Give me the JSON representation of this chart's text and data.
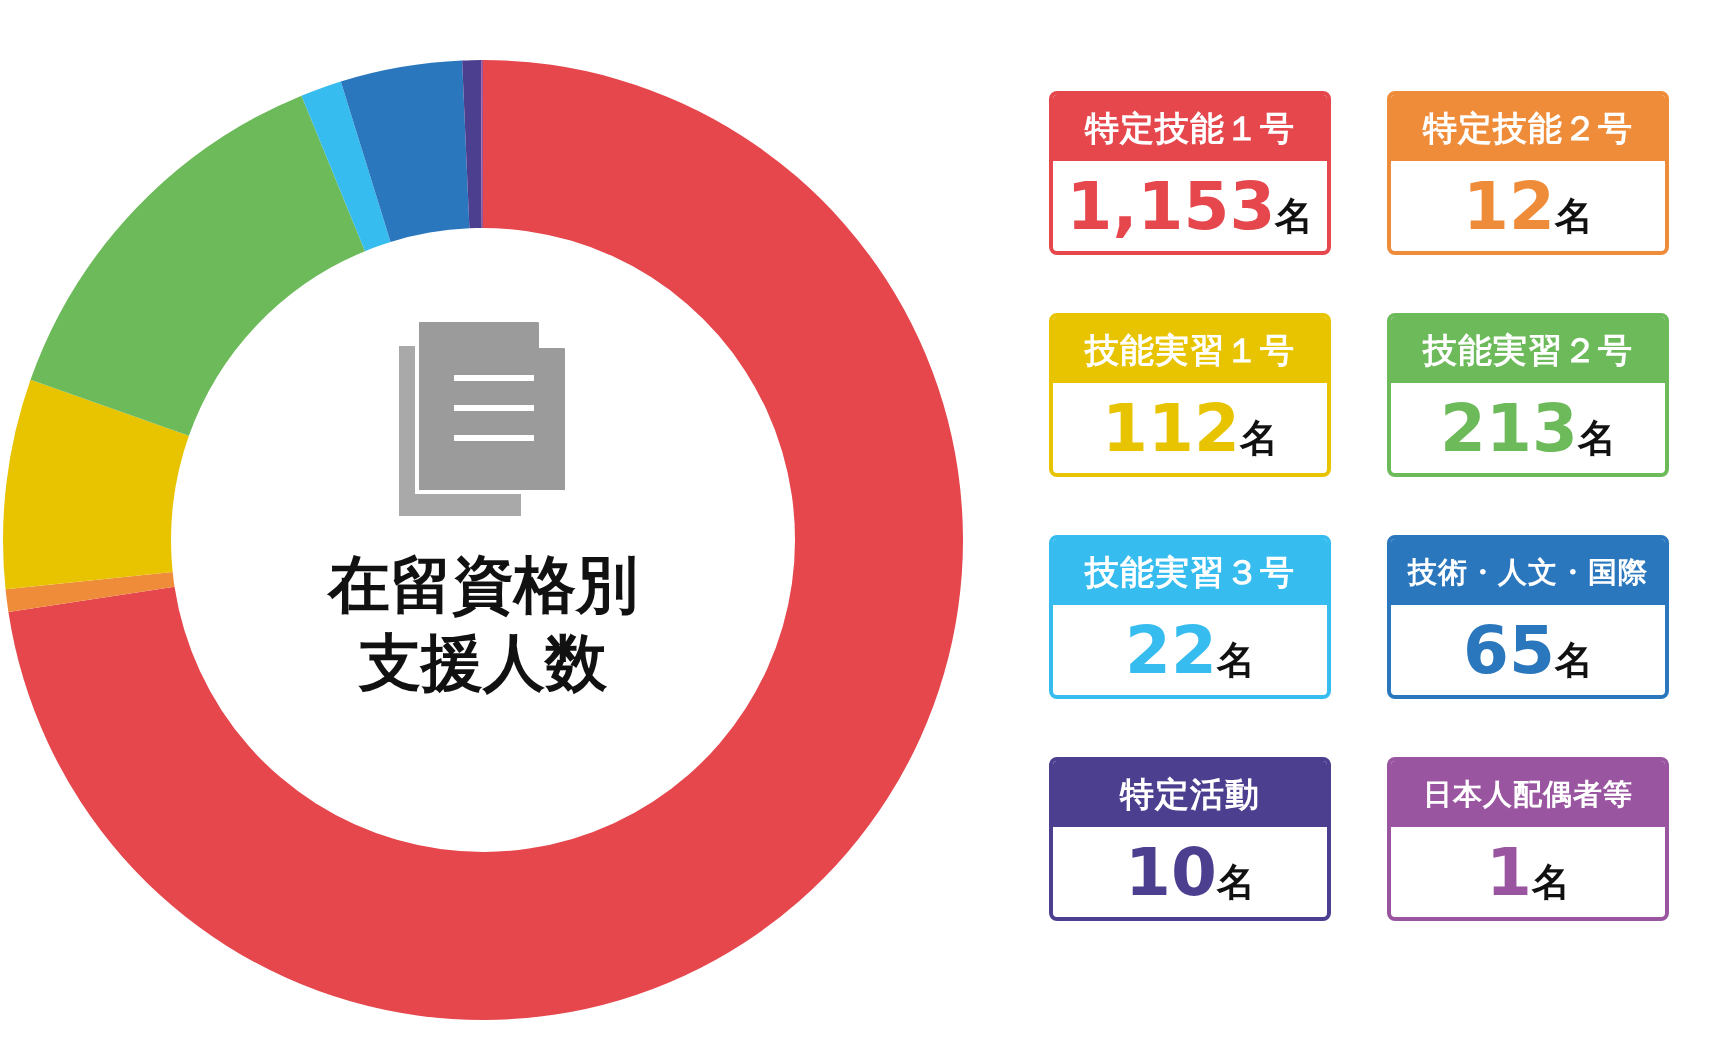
{
  "chart_data": {
    "type": "donut",
    "title": "在留資格別支援人数",
    "categories": [
      "特定技能１号",
      "特定技能２号",
      "技能実習１号",
      "技能実習２号",
      "技能実習３号",
      "技術・人文・国際",
      "特定活動",
      "日本人配偶者等"
    ],
    "values": [
      1153,
      12,
      112,
      213,
      22,
      65,
      10,
      1
    ],
    "value_labels": [
      "1,153名",
      "12名",
      "112名",
      "213名",
      "22名",
      "65名",
      "10名",
      "1名"
    ],
    "colors": [
      "#e5474d",
      "#ef8c3a",
      "#e8c300",
      "#6dba5a",
      "#36bcee",
      "#2a77bd",
      "#4c3f8f",
      "#9a55a0"
    ],
    "legend": "right"
  }
}
